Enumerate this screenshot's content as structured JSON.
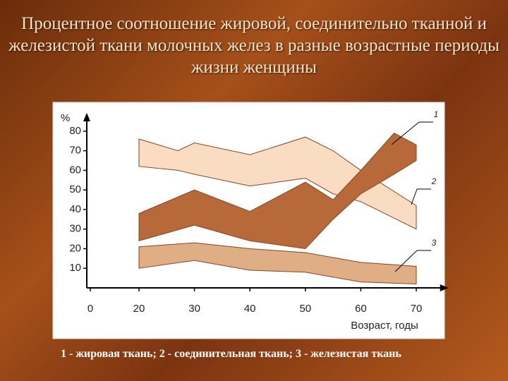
{
  "chart_data": {
    "type": "band",
    "title": "Процентное соотношение жировой, соединительно тканной и железистой ткани молочных желез в разные возрастные периоды жизни женщины",
    "caption": "1 - жировая ткань; 2 - соединительная ткань; 3 - железистая ткань",
    "y_label": "%",
    "x_label": "Возраст, годы",
    "xticks": [
      0,
      20,
      30,
      40,
      50,
      60,
      70
    ],
    "xlim": [
      0,
      72
    ],
    "yticks": [
      10,
      20,
      30,
      40,
      50,
      60,
      70,
      80
    ],
    "ylim": [
      0,
      85
    ],
    "series": [
      {
        "name": "1",
        "color": "#f9dcc2",
        "x": [
          20,
          27,
          30,
          40,
          50,
          55,
          60,
          70
        ],
        "upper": [
          76,
          70,
          74,
          68,
          77,
          70,
          60,
          42
        ],
        "lower": [
          62,
          60,
          58,
          52,
          56,
          48,
          44,
          30
        ]
      },
      {
        "name": "2",
        "color": "#b8693a",
        "x": [
          20,
          30,
          40,
          50,
          55,
          60,
          66,
          70
        ],
        "upper": [
          38,
          50,
          39,
          54,
          45,
          60,
          79,
          73
        ],
        "lower": [
          24,
          32,
          24,
          20,
          35,
          48,
          58,
          65
        ]
      },
      {
        "name": "3",
        "color": "#dfae84",
        "x": [
          20,
          30,
          40,
          50,
          60,
          70
        ],
        "upper": [
          21,
          23,
          20,
          18,
          13,
          11
        ],
        "lower": [
          10,
          14,
          9,
          8,
          3,
          2
        ]
      }
    ]
  }
}
